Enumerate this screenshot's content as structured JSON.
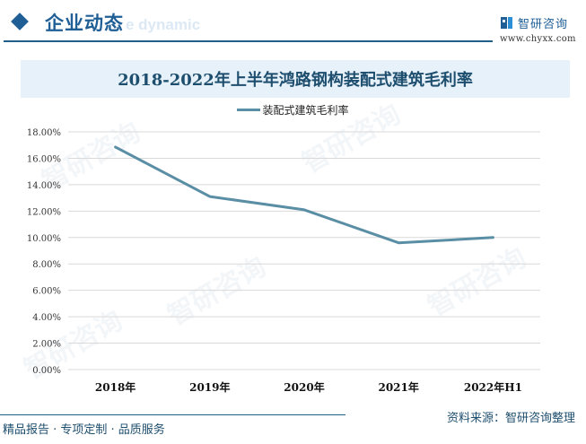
{
  "header": {
    "title": "企业动态",
    "ghost_text": "e dynamic",
    "brand_name": "智研咨询",
    "brand_url": "www.chyxx.com"
  },
  "footer": {
    "slogan": "精品报告 · 专项定制 · 品质服务",
    "source": "资料来源：智研咨询整理"
  },
  "watermark_text": "智研咨询",
  "colors": {
    "accent": "#1f5f96",
    "line": "#5a8ea5",
    "title_band": "#e6f1fa",
    "grid": "#d9d9d9"
  },
  "chart_data": {
    "type": "line",
    "title": "2018-2022年上半年鸿路钢构装配式建筑毛利率",
    "categories": [
      "2018年",
      "2019年",
      "2020年",
      "2021年",
      "2022年H1"
    ],
    "series": [
      {
        "name": "装配式建筑毛利率",
        "values": [
          16.85,
          13.1,
          12.1,
          9.6,
          10.0
        ]
      }
    ],
    "xlabel": "",
    "ylabel": "",
    "ylim": [
      0,
      18
    ],
    "yticks": [
      "0.00%",
      "2.00%",
      "4.00%",
      "6.00%",
      "8.00%",
      "10.00%",
      "12.00%",
      "14.00%",
      "16.00%",
      "18.00%"
    ],
    "grid": true,
    "legend_position": "top"
  }
}
